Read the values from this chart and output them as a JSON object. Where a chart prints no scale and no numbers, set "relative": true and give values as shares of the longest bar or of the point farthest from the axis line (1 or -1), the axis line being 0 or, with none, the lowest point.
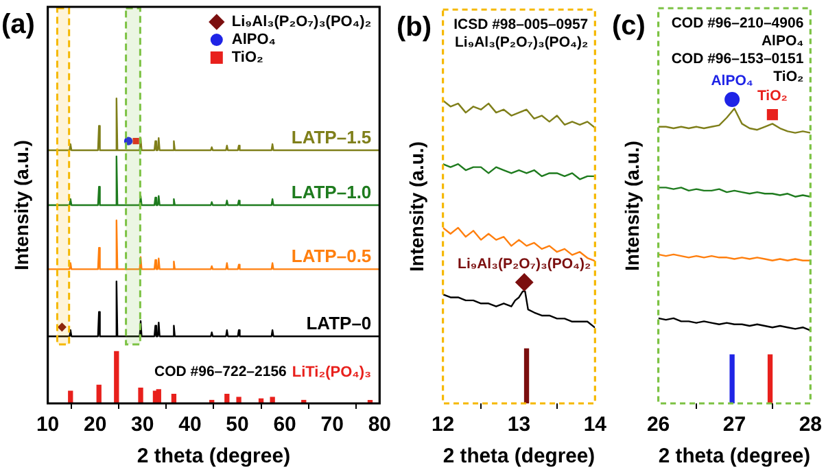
{
  "chart_data": [
    {
      "type": "line",
      "title": "(a)",
      "xlabel": "2 theta (degree)",
      "ylabel": "Intensity (a.u.)",
      "relative": true,
      "xlim": [
        10,
        80
      ],
      "xticks": [
        10,
        20,
        30,
        40,
        50,
        60,
        70,
        80
      ],
      "legend": "top right",
      "x": [
        10,
        14.6,
        14.8,
        15.0,
        20.6,
        20.8,
        21.0,
        24.3,
        24.5,
        24.7,
        29.4,
        29.6,
        29.8,
        32.5,
        32.7,
        32.9,
        33.2,
        33.4,
        33.6,
        36.4,
        36.6,
        36.8,
        44.4,
        44.6,
        44.8,
        47.6,
        47.8,
        48.0,
        50.1,
        50.3,
        50.5,
        57.2,
        57.4,
        57.6,
        80
      ],
      "annotations": [
        "COD #96–722–2156"
      ],
      "bands": [
        {
          "axis": "x",
          "from": 12,
          "to": 14.5,
          "color": "#f5b800"
        },
        {
          "axis": "x",
          "from": 26.5,
          "to": 29.5,
          "color": "#7cc243"
        }
      ],
      "series": [
        {
          "name": "LATP–1.5",
          "color": "#7f7f1a",
          "values": [
            0.83,
            0.83,
            0.85,
            0.83,
            0.83,
            0.91,
            0.83,
            0.83,
            1.0,
            0.83,
            0.83,
            0.87,
            0.83,
            0.83,
            0.86,
            0.83,
            0.83,
            0.87,
            0.83,
            0.83,
            0.86,
            0.83,
            0.83,
            0.84,
            0.83,
            0.83,
            0.845,
            0.83,
            0.83,
            0.845,
            0.83,
            0.83,
            0.85,
            0.83,
            0.83
          ]
        },
        {
          "name": "LATP–1.0",
          "color": "#1e7b1e",
          "values": [
            0.65,
            0.65,
            0.67,
            0.65,
            0.65,
            0.71,
            0.65,
            0.65,
            0.81,
            0.65,
            0.65,
            0.68,
            0.65,
            0.65,
            0.675,
            0.65,
            0.65,
            0.68,
            0.65,
            0.65,
            0.67,
            0.65,
            0.65,
            0.66,
            0.65,
            0.65,
            0.665,
            0.65,
            0.65,
            0.665,
            0.65,
            0.65,
            0.67,
            0.65,
            0.65
          ]
        },
        {
          "name": "LATP–0.5",
          "color": "#ff7f0e",
          "values": [
            0.44,
            0.44,
            0.46,
            0.44,
            0.44,
            0.51,
            0.44,
            0.44,
            0.6,
            0.44,
            0.44,
            0.48,
            0.44,
            0.44,
            0.47,
            0.44,
            0.44,
            0.475,
            0.44,
            0.44,
            0.465,
            0.44,
            0.44,
            0.45,
            0.44,
            0.44,
            0.46,
            0.44,
            0.44,
            0.455,
            0.44,
            0.44,
            0.46,
            0.44,
            0.44
          ]
        },
        {
          "name": "LATP–0",
          "color": "#000000",
          "values": [
            0.22,
            0.22,
            0.24,
            0.22,
            0.22,
            0.3,
            0.22,
            0.22,
            0.4,
            0.22,
            0.22,
            0.27,
            0.22,
            0.22,
            0.255,
            0.22,
            0.22,
            0.265,
            0.22,
            0.22,
            0.255,
            0.22,
            0.22,
            0.233,
            0.22,
            0.22,
            0.24,
            0.22,
            0.22,
            0.24,
            0.22,
            0.22,
            0.24,
            0.22,
            0.22
          ]
        },
        {
          "name": "LiTi₂(PO₄)₃",
          "type": "bar",
          "color": "#e8201c",
          "x": [
            14.8,
            20.8,
            24.5,
            29.6,
            32.7,
            33.4,
            36.6,
            44.6,
            47.8,
            50.3,
            55,
            57.4,
            64,
            78
          ],
          "values": [
            0.04,
            0.06,
            0.17,
            0.05,
            0.04,
            0.045,
            0.03,
            0.01,
            0.03,
            0.02,
            0.015,
            0.02,
            0.01,
            0.01
          ]
        },
        {
          "name": "Li₉Al₃(P₂O₇)₃(PO₄)₂",
          "type": "scatter",
          "marker": "diamond",
          "color": "#7b0f0f",
          "x": [
            13
          ],
          "values": [
            0.25
          ]
        },
        {
          "name": "AlPO₄",
          "type": "scatter",
          "marker": "circle",
          "color": "#1f24e6",
          "x": [
            27.0
          ],
          "values": [
            0.86
          ]
        },
        {
          "name": "TiO₂",
          "type": "scatter",
          "marker": "square",
          "color": "#e8201c",
          "x": [
            28.6
          ],
          "values": [
            0.86
          ]
        }
      ]
    },
    {
      "type": "line",
      "title": "(b)",
      "xlabel": "2 theta (degree)",
      "ylabel": "Intensity (a.u.)",
      "relative": true,
      "xlim": [
        12,
        14
      ],
      "xticks": [
        12,
        13,
        14
      ],
      "x": [
        12.0,
        12.1,
        12.2,
        12.3,
        12.4,
        12.5,
        12.6,
        12.7,
        12.8,
        12.9,
        13.0,
        13.1,
        13.2,
        13.3,
        13.4,
        13.5,
        13.6,
        13.7,
        13.8,
        13.9,
        14.0
      ],
      "annotations": [
        "ICSD #98–005–0957",
        "Li₉Al₃(P₂O₇)₃(PO₄)₂"
      ],
      "series": [
        {
          "color": "#7f7f1a",
          "values": [
            1.0,
            0.98,
            0.99,
            0.96,
            0.98,
            0.97,
            0.99,
            0.96,
            0.97,
            0.95,
            0.96,
            0.97,
            0.94,
            0.95,
            0.93,
            0.95,
            0.92,
            0.93,
            0.92,
            0.93,
            0.91
          ]
        },
        {
          "color": "#1e7b1e",
          "values": [
            0.79,
            0.78,
            0.79,
            0.77,
            0.78,
            0.78,
            0.76,
            0.78,
            0.77,
            0.76,
            0.77,
            0.76,
            0.77,
            0.75,
            0.76,
            0.76,
            0.75,
            0.76,
            0.74,
            0.75,
            0.75
          ]
        },
        {
          "color": "#ff7f0e",
          "values": [
            0.58,
            0.56,
            0.58,
            0.55,
            0.57,
            0.54,
            0.56,
            0.54,
            0.55,
            0.52,
            0.54,
            0.52,
            0.53,
            0.51,
            0.52,
            0.5,
            0.51,
            0.49,
            0.5,
            0.48,
            0.47
          ]
        },
        {
          "color": "#000000",
          "x": [
            12.0,
            12.1,
            12.2,
            12.3,
            12.4,
            12.5,
            12.6,
            12.7,
            12.8,
            12.9,
            12.95,
            13.0,
            13.05,
            13.08,
            13.12,
            13.2,
            13.3,
            13.4,
            13.5,
            13.6,
            13.7,
            13.8,
            13.9,
            14.0
          ],
          "values": [
            0.36,
            0.35,
            0.35,
            0.34,
            0.34,
            0.33,
            0.33,
            0.32,
            0.33,
            0.32,
            0.34,
            0.35,
            0.37,
            0.37,
            0.31,
            0.3,
            0.29,
            0.29,
            0.28,
            0.28,
            0.27,
            0.27,
            0.27,
            0.25
          ]
        },
        {
          "type": "bar",
          "color": "#7b0f0f",
          "x": [
            13.1
          ],
          "values": [
            0.18
          ]
        },
        {
          "name": "Li₉Al₃(P₂O₇)₃(PO₄)₂",
          "type": "scatter",
          "marker": "diamond",
          "color": "#7b0f0f",
          "x": [
            13.07
          ],
          "values": [
            0.4
          ]
        }
      ]
    },
    {
      "type": "line",
      "title": "(c)",
      "xlabel": "2 theta (degree)",
      "ylabel": "Intensity (a.u.)",
      "relative": true,
      "xlim": [
        26,
        28
      ],
      "xticks": [
        26,
        27,
        28
      ],
      "x": [
        26.0,
        26.1,
        26.2,
        26.3,
        26.4,
        26.5,
        26.6,
        26.7,
        26.8,
        26.9,
        27.0,
        27.1,
        27.2,
        27.3,
        27.4,
        27.5,
        27.6,
        27.7,
        27.8,
        27.9,
        28.0
      ],
      "annotations": [
        "COD #96–210–4906",
        "AlPO₄",
        "COD #96–153–0151",
        "TiO₂"
      ],
      "series": [
        {
          "color": "#7f7f1a",
          "values": [
            0.91,
            0.91,
            0.905,
            0.91,
            0.905,
            0.91,
            0.905,
            0.91,
            0.915,
            0.94,
            0.97,
            0.92,
            0.905,
            0.9,
            0.91,
            0.92,
            0.905,
            0.895,
            0.89,
            0.895,
            0.89
          ]
        },
        {
          "color": "#1e7b1e",
          "values": [
            0.71,
            0.71,
            0.705,
            0.71,
            0.7,
            0.705,
            0.7,
            0.7,
            0.705,
            0.695,
            0.7,
            0.695,
            0.69,
            0.695,
            0.69,
            0.69,
            0.685,
            0.69,
            0.68,
            0.685,
            0.68
          ]
        },
        {
          "color": "#ff7f0e",
          "values": [
            0.49,
            0.485,
            0.49,
            0.485,
            0.48,
            0.485,
            0.48,
            0.485,
            0.48,
            0.48,
            0.475,
            0.48,
            0.475,
            0.48,
            0.475,
            0.47,
            0.475,
            0.47,
            0.475,
            0.47,
            0.47
          ]
        },
        {
          "color": "#000000",
          "values": [
            0.28,
            0.275,
            0.28,
            0.27,
            0.27,
            0.265,
            0.27,
            0.265,
            0.26,
            0.265,
            0.26,
            0.26,
            0.255,
            0.26,
            0.255,
            0.25,
            0.255,
            0.25,
            0.245,
            0.25,
            0.24
          ]
        },
        {
          "type": "bar",
          "colors": [
            "#1f24e6",
            "#e8201c"
          ],
          "x": [
            26.97,
            27.47
          ],
          "values": [
            0.16,
            0.16
          ]
        },
        {
          "name": "AlPO₄",
          "type": "scatter",
          "marker": "circle",
          "color": "#1f24e6",
          "x": [
            26.97
          ],
          "values": [
            1.0
          ]
        },
        {
          "name": "TiO₂",
          "type": "scatter",
          "marker": "square",
          "color": "#e8201c",
          "x": [
            27.5
          ],
          "values": [
            0.95
          ]
        }
      ]
    }
  ]
}
